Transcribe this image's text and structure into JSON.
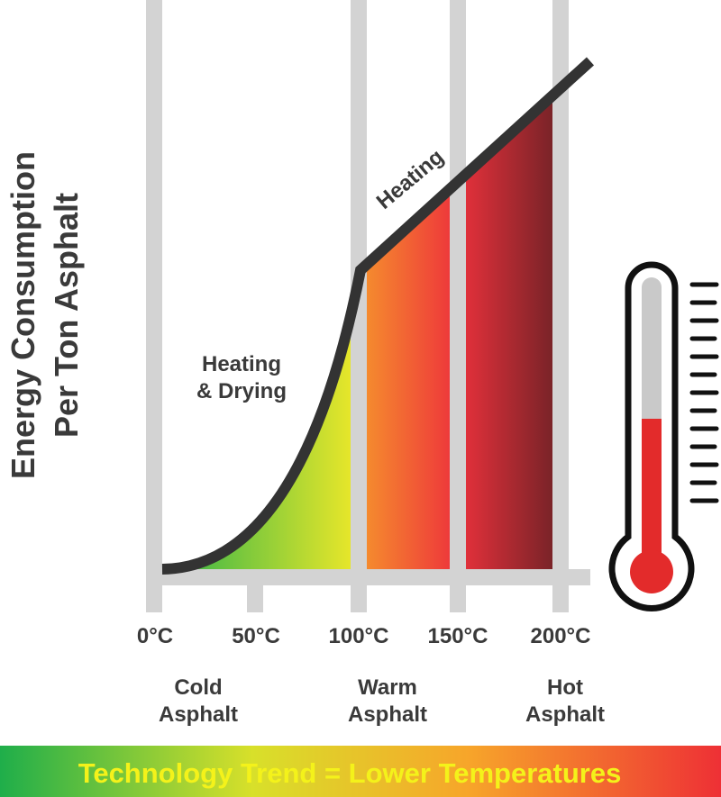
{
  "y_axis_label": [
    "Energy Consumption",
    "Per Ton Asphalt"
  ],
  "curve_labels": {
    "upper": "Heating",
    "lower": [
      "Heating",
      "& Drying"
    ]
  },
  "x_ticks": [
    "0°C",
    "50°C",
    "100°C",
    "150°C",
    "200°C"
  ],
  "categories": [
    [
      "Cold",
      "Asphalt"
    ],
    [
      "Warm",
      "Asphalt"
    ],
    [
      "Hot",
      "Asphalt"
    ]
  ],
  "banner": "Technology Trend = Lower Temperatures"
}
